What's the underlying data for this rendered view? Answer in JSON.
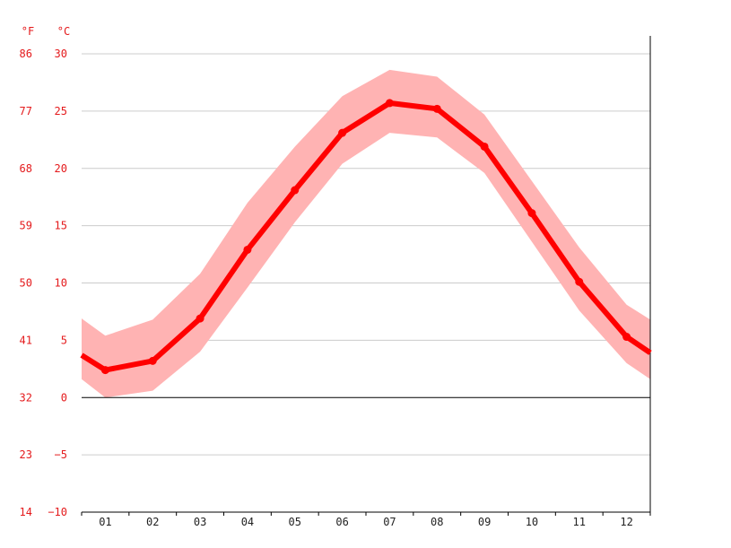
{
  "chart_data": {
    "type": "line",
    "title": "",
    "xlabel": "",
    "ylabel": "",
    "categories": [
      "01",
      "02",
      "03",
      "04",
      "05",
      "06",
      "07",
      "08",
      "09",
      "10",
      "11",
      "12"
    ],
    "series": [
      {
        "role": "mean",
        "values": [
          2.4,
          3.2,
          6.9,
          12.9,
          18.1,
          23.1,
          25.7,
          25.2,
          21.9,
          16.1,
          10.1,
          5.3
        ]
      }
    ],
    "band": {
      "upper": [
        5.4,
        6.8,
        10.8,
        17.0,
        21.9,
        26.3,
        28.6,
        28.0,
        24.7,
        18.9,
        13.1,
        8.1
      ],
      "lower": [
        0.0,
        0.6,
        4.0,
        9.6,
        15.3,
        20.4,
        23.1,
        22.7,
        19.6,
        13.6,
        7.6,
        3.0
      ]
    },
    "ends": {
      "start": {
        "mean": 3.7,
        "upper": 6.9,
        "lower": 1.6
      },
      "end": {
        "mean": 3.9,
        "upper": 6.8,
        "lower": 1.6
      }
    },
    "ylim": [
      -10,
      30
    ],
    "y_ticks_c": [
      "30",
      "25",
      "20",
      "15",
      "10",
      "5",
      "0",
      "−5",
      "−10"
    ],
    "y_ticks_f": [
      "86",
      "77",
      "68",
      "59",
      "50",
      "41",
      "32",
      "23",
      "14"
    ],
    "unit_f": "°F",
    "unit_c": "°C",
    "grid": true,
    "colors": {
      "line": "#ff0000",
      "band": "#ffb3b3",
      "grid": "#cccccc",
      "axis": "#000000",
      "tick_text": "#e41a1c"
    }
  }
}
